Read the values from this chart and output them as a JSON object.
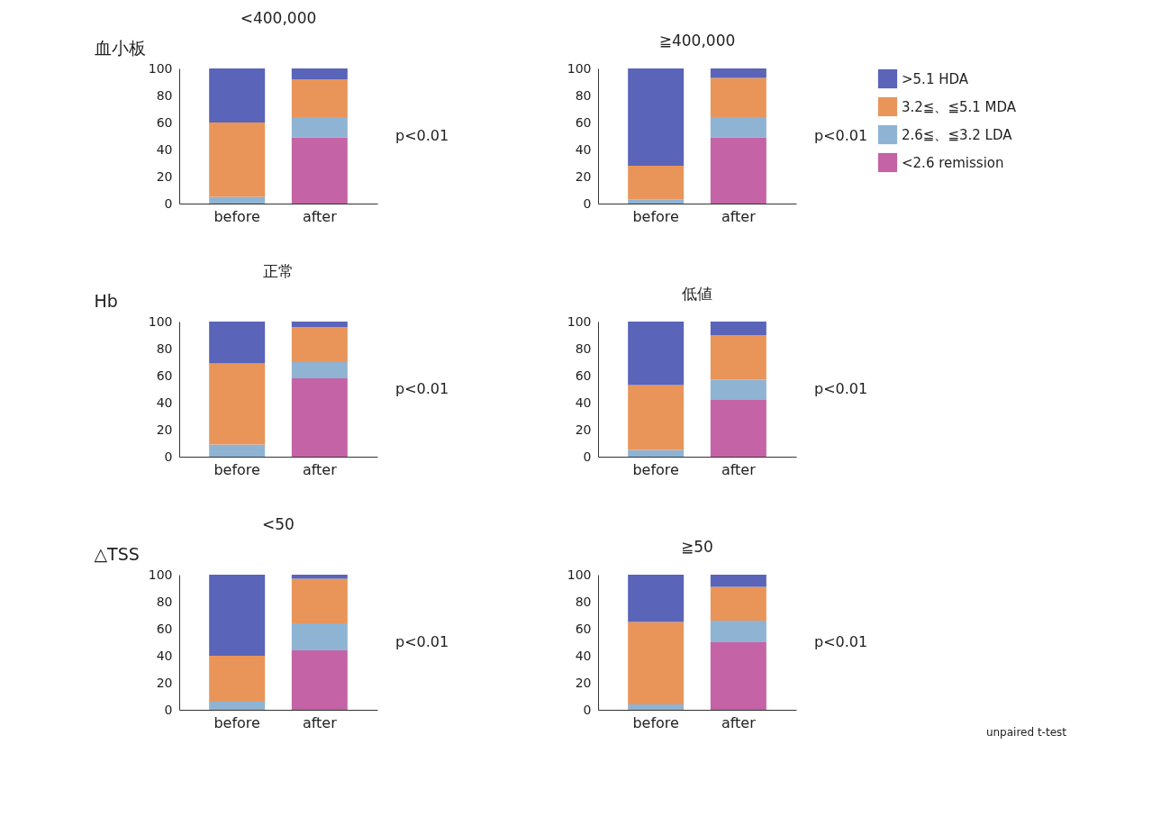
{
  "chart_data": [
    {
      "type": "bar",
      "stacked": true,
      "title": "<400,000",
      "ylabel": "血小板",
      "categories": [
        "before",
        "after"
      ],
      "ylim": [
        0,
        100
      ],
      "yticks": [
        0,
        20,
        40,
        60,
        80,
        100
      ],
      "annotations": [
        "p<0.01"
      ],
      "series": [
        {
          "color": "#c463a5",
          "values": [
            0,
            49
          ]
        },
        {
          "color": "#8fb3d3",
          "values": [
            5,
            15
          ]
        },
        {
          "color": "#e9955a",
          "values": [
            55,
            28
          ]
        },
        {
          "color": "#5a64b8",
          "values": [
            40,
            8
          ]
        }
      ]
    },
    {
      "type": "bar",
      "stacked": true,
      "title": "≧400,000",
      "categories": [
        "before",
        "after"
      ],
      "ylim": [
        0,
        100
      ],
      "yticks": [
        0,
        20,
        40,
        60,
        80,
        100
      ],
      "legend": "right",
      "annotations": [
        "p<0.01"
      ],
      "series": [
        {
          "name": "<2.6 remission",
          "color": "#c463a5",
          "values": [
            0,
            49
          ]
        },
        {
          "name": "2.6≦、≦3.2 LDA",
          "color": "#8fb3d3",
          "values": [
            3,
            15
          ]
        },
        {
          "name": "3.2≦、≦5.1 MDA",
          "color": "#e9955a",
          "values": [
            25,
            29
          ]
        },
        {
          "name": ">5.1 HDA",
          "color": "#5a64b8",
          "values": [
            72,
            7
          ]
        }
      ]
    },
    {
      "type": "bar",
      "stacked": true,
      "title": "正常",
      "ylabel": "Hb",
      "categories": [
        "before",
        "after"
      ],
      "ylim": [
        0,
        100
      ],
      "yticks": [
        0,
        20,
        40,
        60,
        80,
        100
      ],
      "annotations": [
        "p<0.01"
      ],
      "series": [
        {
          "color": "#c463a5",
          "values": [
            0,
            58
          ]
        },
        {
          "color": "#8fb3d3",
          "values": [
            9,
            12
          ]
        },
        {
          "color": "#e9955a",
          "values": [
            60,
            26
          ]
        },
        {
          "color": "#5a64b8",
          "values": [
            31,
            4
          ]
        }
      ]
    },
    {
      "type": "bar",
      "stacked": true,
      "title": "低値",
      "categories": [
        "before",
        "after"
      ],
      "ylim": [
        0,
        100
      ],
      "yticks": [
        0,
        20,
        40,
        60,
        80,
        100
      ],
      "annotations": [
        "p<0.01"
      ],
      "series": [
        {
          "color": "#c463a5",
          "values": [
            0,
            42
          ]
        },
        {
          "color": "#8fb3d3",
          "values": [
            5,
            15
          ]
        },
        {
          "color": "#e9955a",
          "values": [
            48,
            33
          ]
        },
        {
          "color": "#5a64b8",
          "values": [
            47,
            10
          ]
        }
      ]
    },
    {
      "type": "bar",
      "stacked": true,
      "title": "<50",
      "ylabel": "△TSS",
      "categories": [
        "before",
        "after"
      ],
      "ylim": [
        0,
        100
      ],
      "yticks": [
        0,
        20,
        40,
        60,
        80,
        100
      ],
      "annotations": [
        "p<0.01"
      ],
      "series": [
        {
          "color": "#c463a5",
          "values": [
            0,
            44
          ]
        },
        {
          "color": "#8fb3d3",
          "values": [
            6,
            20
          ]
        },
        {
          "color": "#e9955a",
          "values": [
            34,
            33
          ]
        },
        {
          "color": "#5a64b8",
          "values": [
            60,
            3
          ]
        }
      ]
    },
    {
      "type": "bar",
      "stacked": true,
      "title": "≧50",
      "categories": [
        "before",
        "after"
      ],
      "ylim": [
        0,
        100
      ],
      "yticks": [
        0,
        20,
        40,
        60,
        80,
        100
      ],
      "annotations": [
        "p<0.01",
        "unpaired t-test"
      ],
      "series": [
        {
          "color": "#c463a5",
          "values": [
            0,
            50
          ]
        },
        {
          "color": "#8fb3d3",
          "values": [
            4,
            16
          ]
        },
        {
          "color": "#e9955a",
          "values": [
            61,
            25
          ]
        },
        {
          "color": "#5a64b8",
          "values": [
            35,
            9
          ]
        }
      ]
    }
  ]
}
